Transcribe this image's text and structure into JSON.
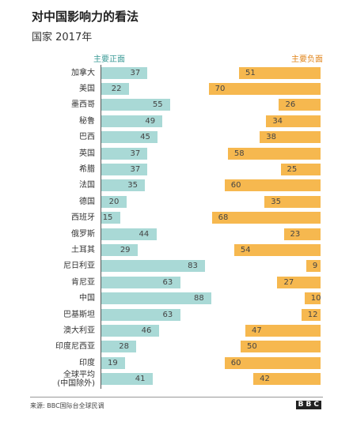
{
  "chart_data": {
    "type": "bar",
    "title": "对中国影响力的看法",
    "subtitle": "国家 2017年",
    "categories": [
      "加拿大",
      "美国",
      "墨西哥",
      "秘鲁",
      "巴西",
      "英国",
      "希腊",
      "法国",
      "德国",
      "西班牙",
      "俄罗斯",
      "土耳其",
      "尼日利亚",
      "肯尼亚",
      "中国",
      "巴基斯坦",
      "澳大利亚",
      "印度尼西亚",
      "印度",
      "全球平均\n(中国除外)"
    ],
    "series": [
      {
        "name": "主要正面",
        "color": "#a9d9d6",
        "label_color": "#3a9a96",
        "values": [
          37,
          22,
          55,
          49,
          45,
          37,
          37,
          35,
          20,
          15,
          44,
          29,
          83,
          63,
          88,
          63,
          46,
          28,
          19,
          41
        ]
      },
      {
        "name": "主要负面",
        "color": "#f6b84f",
        "label_color": "#e0841a",
        "values": [
          51,
          70,
          26,
          34,
          38,
          58,
          25,
          60,
          35,
          68,
          23,
          54,
          9,
          27,
          10,
          12,
          47,
          50,
          60,
          42
        ]
      }
    ],
    "source": "来源: BBC国际台全球民调",
    "logo": "BBC"
  }
}
